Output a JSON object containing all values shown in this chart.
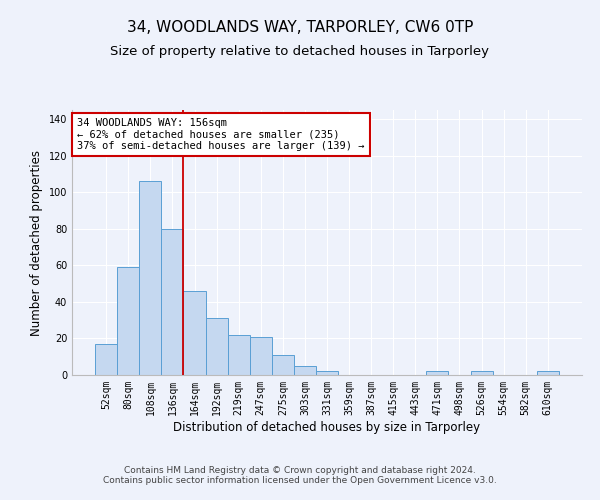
{
  "title": "34, WOODLANDS WAY, TARPORLEY, CW6 0TP",
  "subtitle": "Size of property relative to detached houses in Tarporley",
  "xlabel": "Distribution of detached houses by size in Tarporley",
  "ylabel": "Number of detached properties",
  "categories": [
    "52sqm",
    "80sqm",
    "108sqm",
    "136sqm",
    "164sqm",
    "192sqm",
    "219sqm",
    "247sqm",
    "275sqm",
    "303sqm",
    "331sqm",
    "359sqm",
    "387sqm",
    "415sqm",
    "443sqm",
    "471sqm",
    "498sqm",
    "526sqm",
    "554sqm",
    "582sqm",
    "610sqm"
  ],
  "values": [
    17,
    59,
    106,
    80,
    46,
    31,
    22,
    21,
    11,
    5,
    2,
    0,
    0,
    0,
    0,
    2,
    0,
    2,
    0,
    0,
    2
  ],
  "bar_color": "#c5d8f0",
  "bar_edge_color": "#5a9fd4",
  "bar_width": 1.0,
  "ylim": [
    0,
    145
  ],
  "yticks": [
    0,
    20,
    40,
    60,
    80,
    100,
    120,
    140
  ],
  "property_line_x": 3.5,
  "property_line_color": "#cc0000",
  "annotation_line1": "34 WOODLANDS WAY: 156sqm",
  "annotation_line2": "← 62% of detached houses are smaller (235)",
  "annotation_line3": "37% of semi-detached houses are larger (139) →",
  "annotation_box_color": "#ffffff",
  "annotation_box_edge": "#cc0000",
  "footer_line1": "Contains HM Land Registry data © Crown copyright and database right 2024.",
  "footer_line2": "Contains public sector information licensed under the Open Government Licence v3.0.",
  "background_color": "#eef2fb",
  "grid_color": "#ffffff",
  "title_fontsize": 11,
  "subtitle_fontsize": 9.5,
  "label_fontsize": 8.5,
  "tick_fontsize": 7,
  "annotation_fontsize": 7.5,
  "footer_fontsize": 6.5
}
